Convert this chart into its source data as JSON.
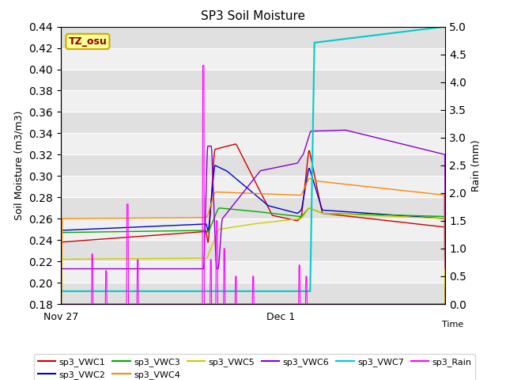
{
  "title": "SP3 Soil Moisture",
  "ylabel_left": "Soil Moisture (m3/m3)",
  "ylabel_right": "Rain (mm)",
  "xlabel": "Time",
  "ylim_left": [
    0.18,
    0.44
  ],
  "ylim_right": [
    0.0,
    5.0
  ],
  "yticks_left": [
    0.18,
    0.2,
    0.22,
    0.24,
    0.26,
    0.28,
    0.3,
    0.32,
    0.34,
    0.36,
    0.38,
    0.4,
    0.42,
    0.44
  ],
  "yticks_right": [
    0.0,
    0.5,
    1.0,
    1.5,
    2.0,
    2.5,
    3.0,
    3.5,
    4.0,
    4.5,
    5.0
  ],
  "xtick_labels": [
    "Nov 27",
    "Dec 1"
  ],
  "bg_color": "#e8e8e8",
  "plot_bg_color": "#e8e8e8",
  "legend_entries": [
    {
      "label": "sp3_VWC1",
      "color": "#cc0000",
      "linestyle": "-"
    },
    {
      "label": "sp3_VWC2",
      "color": "#0000cc",
      "linestyle": "-"
    },
    {
      "label": "sp3_VWC3",
      "color": "#00aa00",
      "linestyle": "-"
    },
    {
      "label": "sp3_VWC4",
      "color": "#ff8800",
      "linestyle": "-"
    },
    {
      "label": "sp3_VWC5",
      "color": "#cccc00",
      "linestyle": "-"
    },
    {
      "label": "sp3_VWC6",
      "color": "#8800cc",
      "linestyle": "-"
    },
    {
      "label": "sp3_VWC7",
      "color": "#00cccc",
      "linestyle": "-"
    },
    {
      "label": "sp3_Rain",
      "color": "#ff00ff",
      "linestyle": "-"
    }
  ],
  "annotation_text": "TZ_osu",
  "annotation_color": "#8B0000",
  "annotation_bg": "#ffff99",
  "annotation_border": "#ccaa00"
}
